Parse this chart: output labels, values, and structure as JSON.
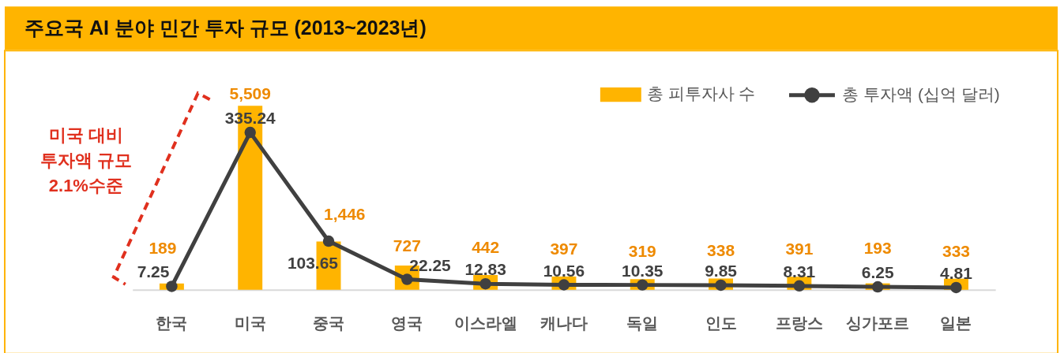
{
  "chart_data": {
    "type": "bar",
    "title": "주요국 AI 분야 민간 투자 규모 (2013~2023년)",
    "categories": [
      "한국",
      "미국",
      "중국",
      "영국",
      "이스라엘",
      "캐나다",
      "독일",
      "인도",
      "프랑스",
      "싱가포르",
      "일본"
    ],
    "series": [
      {
        "name": "총 피투자사 수",
        "color": "#ffb400",
        "values": [
          189,
          5509,
          1446,
          727,
          442,
          397,
          319,
          338,
          391,
          193,
          333
        ],
        "value_labels": [
          "189",
          "5,509",
          "1,446",
          "727",
          "442",
          "397",
          "319",
          "338",
          "391",
          "193",
          "333"
        ]
      },
      {
        "name": "총 투자액 (십억 달러)",
        "type": "line",
        "axis": "y2",
        "color": "#404040",
        "values": [
          7.25,
          335.24,
          103.65,
          22.25,
          12.83,
          10.56,
          10.35,
          9.85,
          8.31,
          6.25,
          4.81
        ]
      }
    ],
    "data_labels": true,
    "marker": "circle",
    "legend": "top right",
    "tick_labels": "x",
    "annotations": [
      "미국 대비 투자액 규모 2.1%수준"
    ]
  }
}
